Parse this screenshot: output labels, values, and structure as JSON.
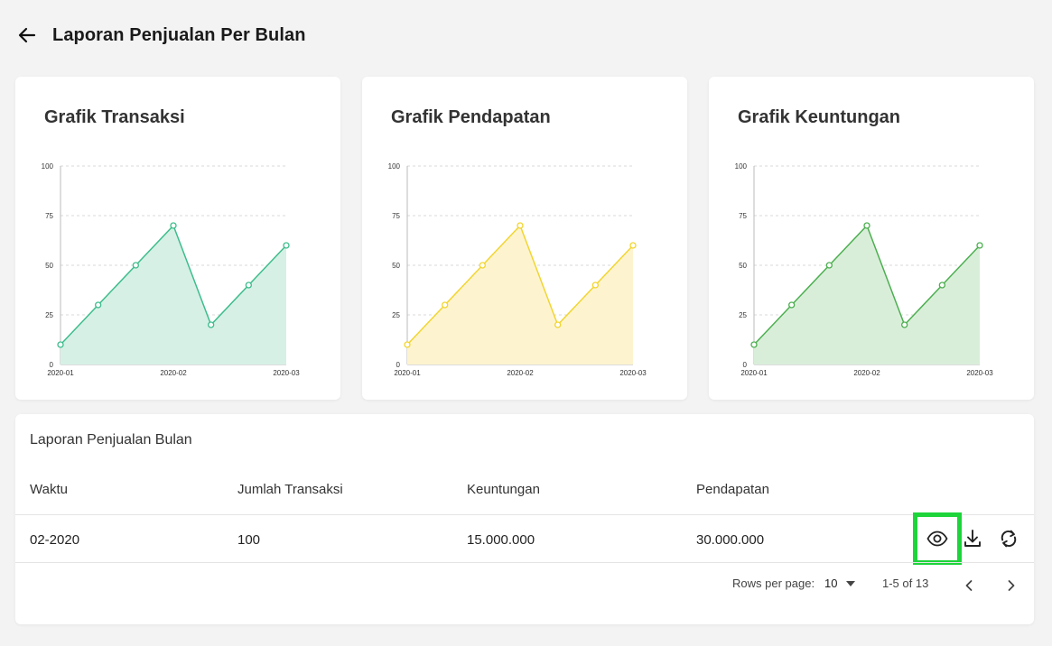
{
  "header": {
    "title": "Laporan Penjualan Per Bulan"
  },
  "charts": [
    {
      "title": "Grafik Transaksi",
      "color": "#3dbd8c",
      "fill": "#d6f0e6",
      "chart_data": {
        "type": "area",
        "x_ticks": [
          "2020-01",
          "2020-02",
          "2020-03"
        ],
        "y_ticks": [
          "100",
          "75",
          "50",
          "25",
          "0"
        ],
        "values": [
          10,
          30,
          50,
          70,
          20,
          40,
          60
        ],
        "ylim": [
          0,
          100
        ],
        "grid": true
      }
    },
    {
      "title": "Grafik Pendapatan",
      "color": "#f2d530",
      "fill": "#fdf4cf",
      "chart_data": {
        "type": "area",
        "x_ticks": [
          "2020-01",
          "2020-02",
          "2020-03"
        ],
        "y_ticks": [
          "100",
          "75",
          "50",
          "25",
          "0"
        ],
        "values": [
          10,
          30,
          50,
          70,
          20,
          40,
          60
        ],
        "ylim": [
          0,
          100
        ],
        "grid": true
      }
    },
    {
      "title": "Grafik Keuntungan",
      "color": "#4caf50",
      "fill": "#d9eed9",
      "chart_data": {
        "type": "area",
        "x_ticks": [
          "2020-01",
          "2020-02",
          "2020-03"
        ],
        "y_ticks": [
          "100",
          "75",
          "50",
          "25",
          "0"
        ],
        "values": [
          10,
          30,
          50,
          70,
          20,
          40,
          60
        ],
        "ylim": [
          0,
          100
        ],
        "grid": true
      }
    }
  ],
  "table": {
    "title": "Laporan Penjualan Bulan",
    "columns": [
      "Waktu",
      "Jumlah Transaksi",
      "Keuntungan",
      "Pendapatan"
    ],
    "rows": [
      {
        "waktu": "02-2020",
        "jumlah": "100",
        "keuntungan": "15.000.000",
        "pendapatan": "30.000.000"
      }
    ],
    "actions": [
      "eye-icon",
      "download-icon",
      "refresh-icon"
    ],
    "highlight_color": "#1ed43b"
  },
  "pagination": {
    "rows_label": "Rows per page:",
    "rows_value": "10",
    "range": "1-5 of 13"
  }
}
